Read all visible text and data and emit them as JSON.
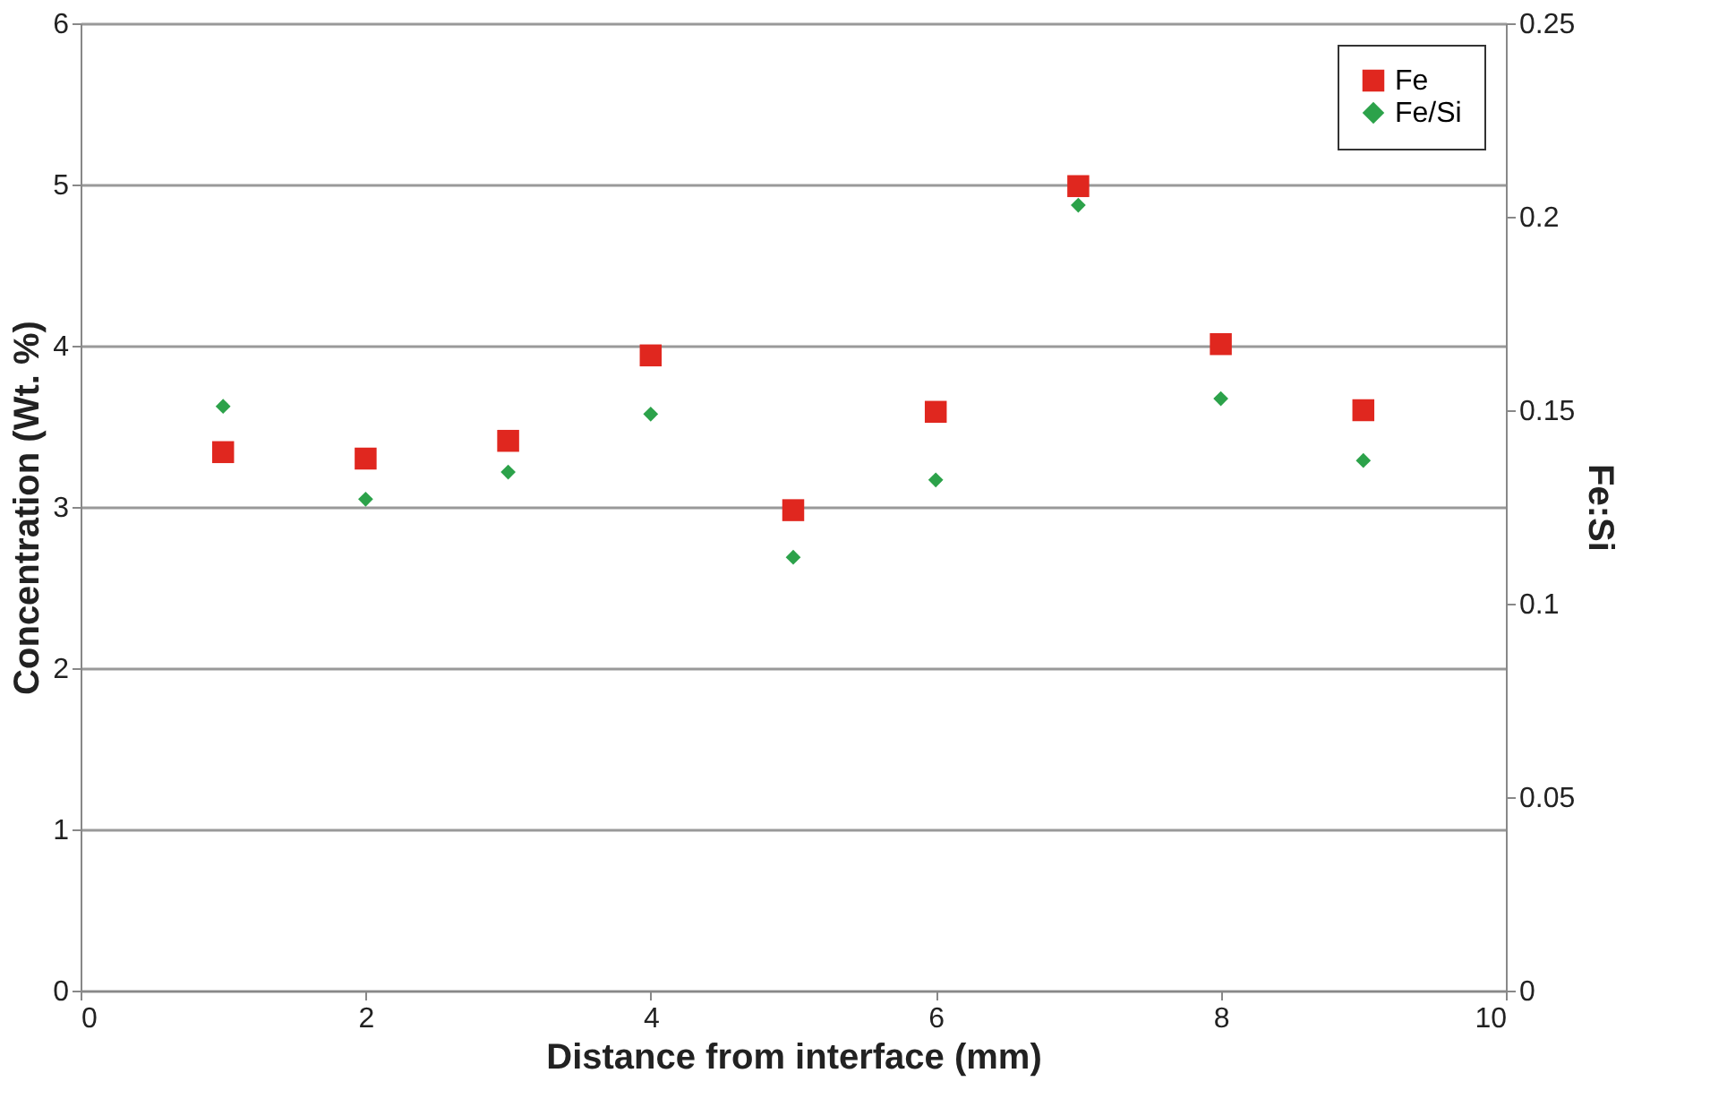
{
  "chart_data": {
    "type": "scatter",
    "xlabel": "Distance from interface (mm)",
    "ylabel": "Concentration (Wt. %)",
    "y2label": "Fe:Si",
    "x": [
      1,
      2,
      3,
      4,
      5,
      6,
      7,
      8,
      9
    ],
    "series": [
      {
        "name": "Fe",
        "color": "#e0271f",
        "marker": "square",
        "values": [
          3.34,
          3.3,
          3.41,
          3.94,
          2.98,
          3.59,
          4.99,
          4.01,
          3.6
        ]
      },
      {
        "name": "Fe/Si",
        "color": "#2ca24a",
        "marker": "diamond",
        "axis": "y2",
        "values": [
          0.151,
          0.127,
          0.134,
          0.149,
          0.112,
          0.132,
          0.203,
          0.153,
          0.137
        ]
      }
    ],
    "xlim": [
      0,
      10
    ],
    "xticks": [
      0,
      2,
      4,
      6,
      8,
      10
    ],
    "ylim": [
      0,
      6
    ],
    "yticks": [
      0,
      1,
      2,
      3,
      4,
      5,
      6
    ],
    "y2lim": [
      0,
      0.25
    ],
    "y2ticks": [
      0,
      0.05,
      0.1,
      0.15,
      0.2,
      0.25
    ],
    "grid": "y",
    "legend": "top right"
  }
}
